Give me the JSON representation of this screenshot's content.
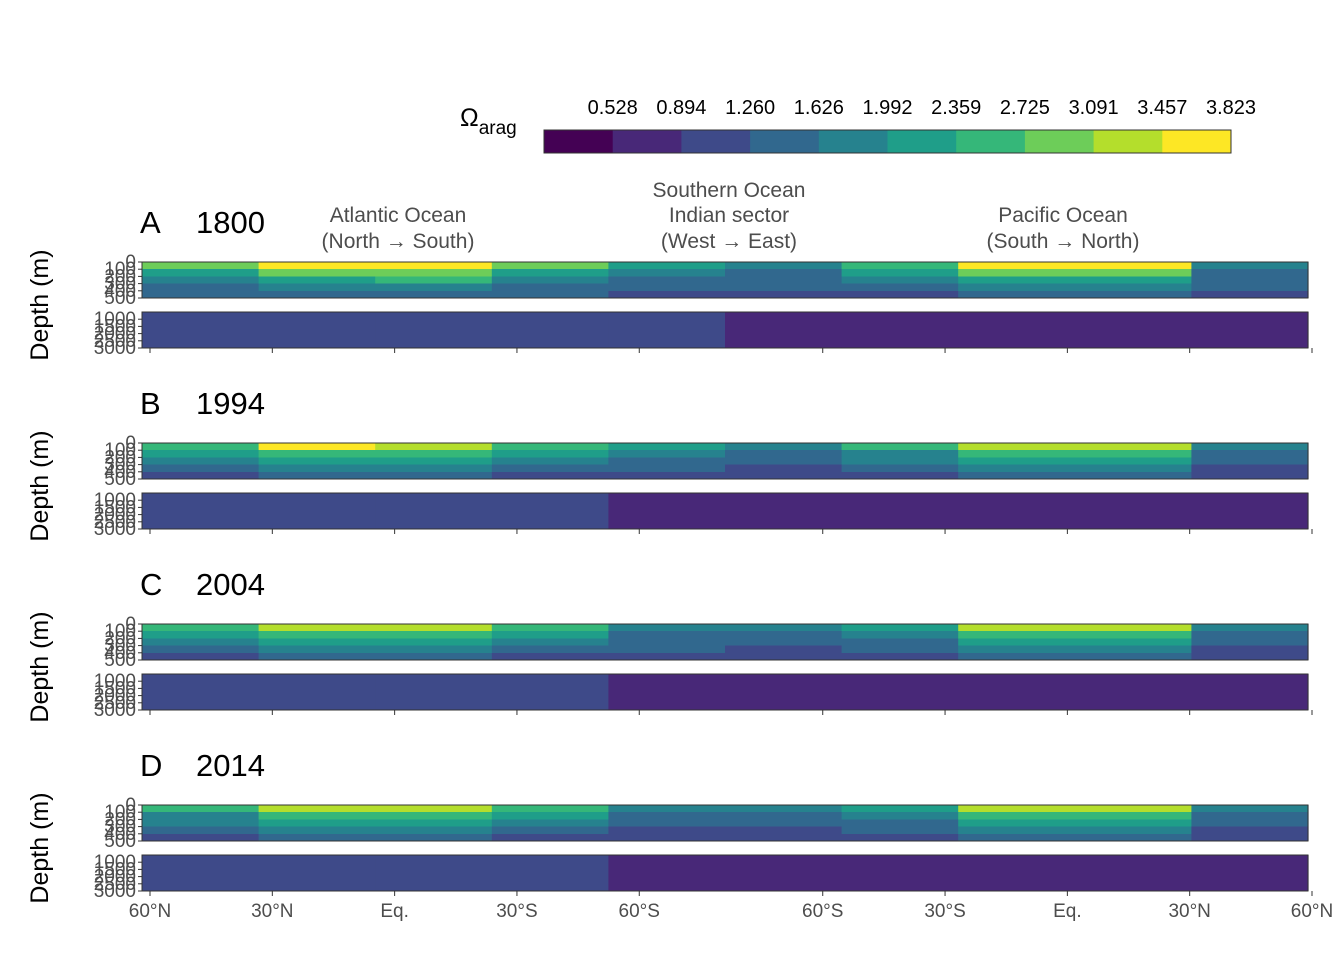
{
  "chart_data": {
    "type": "heatmap",
    "variable": "Ω",
    "variable_subscript": "arag",
    "legend": {
      "breaks": [
        "0.528",
        "0.894",
        "1.260",
        "1.626",
        "1.992",
        "2.359",
        "2.725",
        "3.091",
        "3.457",
        "3.823"
      ],
      "colors": [
        "#440154",
        "#482878",
        "#3E4A89",
        "#31688E",
        "#26828E",
        "#1F9E89",
        "#35B779",
        "#6DCD59",
        "#B4DE2C",
        "#FDE725"
      ],
      "placement": "top-right"
    },
    "basins": [
      {
        "line1": "Atlantic Ocean",
        "line2": "",
        "line3": "(North → South)"
      },
      {
        "line1": "Southern Ocean",
        "line2": "Indian sector",
        "line3": "(West → East)"
      },
      {
        "line1": "Pacific Ocean",
        "line2": "",
        "line3": "(South → North)"
      }
    ],
    "x_ticks": [
      "60°N",
      "30°N",
      "Eq.",
      "30°S",
      "60°S",
      "60°S",
      "30°S",
      "Eq.",
      "30°N",
      "60°N"
    ],
    "x_tick_positions": [
      0,
      1,
      2,
      3,
      4,
      5.5,
      6.5,
      7.5,
      8.5,
      9.5
    ],
    "x_range": [
      0,
      9.5
    ],
    "ylabel": "Depth (m)",
    "upper_depth_range": [
      0,
      500
    ],
    "upper_depth_ticks": [
      "0",
      "100",
      "200",
      "300",
      "400",
      "500"
    ],
    "lower_depth_range": [
      500,
      3000
    ],
    "lower_depth_ticks": [
      "1000",
      "1500",
      "2000",
      "2500",
      "3000"
    ],
    "panels": [
      {
        "letter": "A",
        "year": "1800",
        "surface_omega": [
          2.9,
          3.7,
          4.0,
          2.9,
          2.2,
          1.9,
          2.6,
          3.6,
          3.7,
          1.9
        ],
        "deep_omega": [
          1.1,
          1.2,
          1.1,
          1.0,
          0.9,
          0.85,
          0.85,
          0.8,
          0.75,
          0.6
        ]
      },
      {
        "letter": "B",
        "year": "1994",
        "surface_omega": [
          2.6,
          3.5,
          3.3,
          2.7,
          2.0,
          1.8,
          2.4,
          3.4,
          3.3,
          1.8
        ],
        "deep_omega": [
          1.1,
          1.15,
          1.05,
          0.95,
          0.85,
          0.8,
          0.8,
          0.75,
          0.7,
          0.55
        ]
      },
      {
        "letter": "C",
        "year": "2004",
        "surface_omega": [
          2.5,
          3.3,
          3.2,
          2.6,
          1.9,
          1.75,
          2.3,
          3.3,
          3.2,
          1.75
        ],
        "deep_omega": [
          1.1,
          1.15,
          1.05,
          0.95,
          0.85,
          0.8,
          0.8,
          0.75,
          0.7,
          0.55
        ]
      },
      {
        "letter": "D",
        "year": "2014",
        "surface_omega": [
          2.4,
          3.2,
          3.1,
          2.5,
          1.85,
          1.7,
          2.25,
          3.2,
          3.1,
          1.7
        ],
        "deep_omega": [
          1.1,
          1.1,
          1.0,
          0.95,
          0.85,
          0.8,
          0.8,
          0.75,
          0.7,
          0.55
        ]
      }
    ]
  }
}
